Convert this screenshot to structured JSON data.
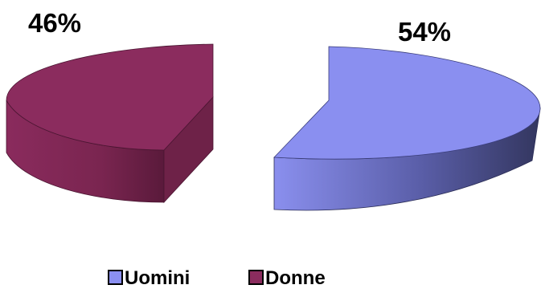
{
  "chart_data": {
    "type": "pie",
    "style": "3d-exploded",
    "title": "",
    "slices": [
      {
        "label": "Uomini",
        "value": 54,
        "value_label": "54%",
        "color": "#8a8ff0",
        "side_color": "#3b3e78"
      },
      {
        "label": "Donne",
        "value": 46,
        "value_label": "46%",
        "color": "#8b2c5e",
        "side_color": "#5e1b3e"
      }
    ],
    "legend": {
      "position": "bottom",
      "entries": [
        "Uomini",
        "Donne"
      ]
    }
  }
}
